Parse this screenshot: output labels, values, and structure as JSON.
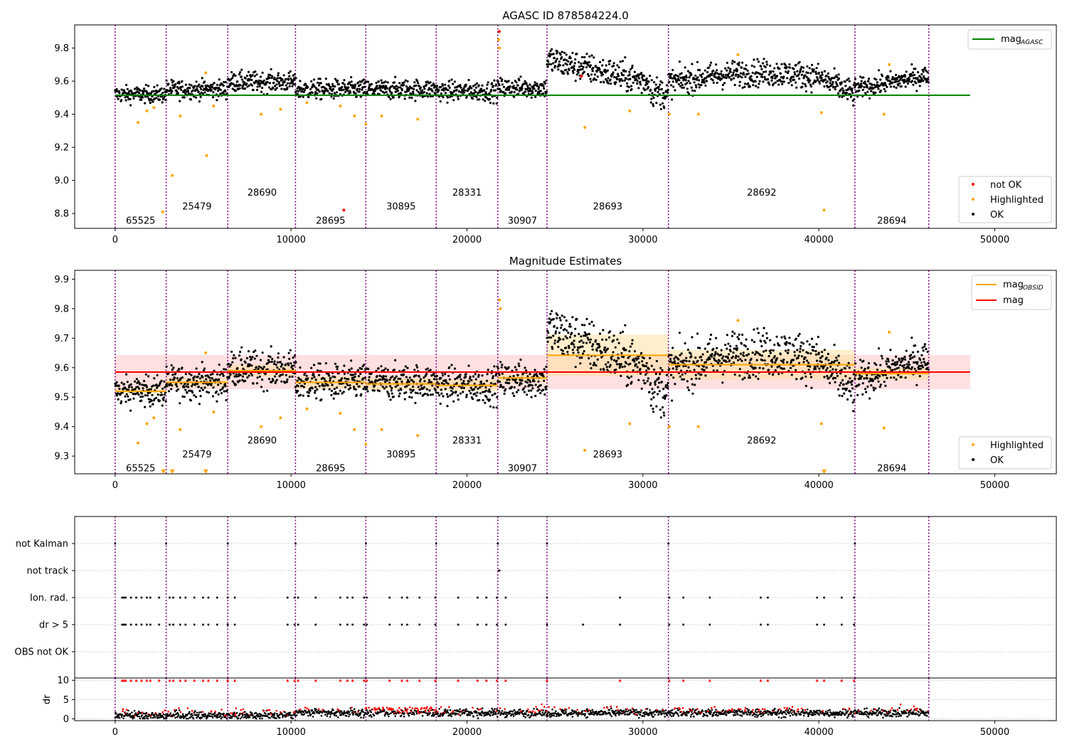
{
  "chart_data": [
    {
      "type": "scatter",
      "title": "AGASC ID 878584224.0",
      "xlim": [
        -2300,
        53500
      ],
      "ylim": [
        8.71,
        9.94
      ],
      "xticks": [
        0,
        10000,
        20000,
        30000,
        40000,
        50000
      ],
      "yticks": [
        8.8,
        9.0,
        9.2,
        9.4,
        9.6,
        9.8
      ],
      "ytick_labels": [
        "8.8",
        "9.0",
        "9.2",
        "9.4",
        "9.6",
        "9.8"
      ],
      "grid": false,
      "obs_boundaries": [
        0,
        2900,
        6400,
        10250,
        14250,
        18250,
        21750,
        24550,
        31450,
        42050,
        46250
      ],
      "obsids": [
        {
          "label": "65525",
          "x": 1450,
          "row": 0
        },
        {
          "label": "25479",
          "x": 4650,
          "row": 1
        },
        {
          "label": "28690",
          "x": 8350,
          "row": 2
        },
        {
          "label": "28695",
          "x": 12250,
          "row": 0
        },
        {
          "label": "30895",
          "x": 16250,
          "row": 1
        },
        {
          "label": "28331",
          "x": 20000,
          "row": 2
        },
        {
          "label": "30907",
          "x": 23150,
          "row": 0
        },
        {
          "label": "28693",
          "x": 28000,
          "row": 1
        },
        {
          "label": "28692",
          "x": 36750,
          "row": 2
        },
        {
          "label": "28694",
          "x": 44150,
          "row": 0
        }
      ],
      "label_y_rows": [
        8.76,
        8.845,
        8.93
      ],
      "mag_agasc": 9.515,
      "mag_agasc_x": [
        0,
        48600
      ],
      "segments": [
        {
          "x0": 0,
          "x1": 2900,
          "mean": 9.52,
          "spread": 0.025
        },
        {
          "x0": 2900,
          "x1": 6400,
          "mean": 9.55,
          "spread": 0.028
        },
        {
          "x0": 6400,
          "x1": 10250,
          "mean": 9.595,
          "spread": 0.03
        },
        {
          "x0": 10250,
          "x1": 14250,
          "mean": 9.55,
          "spread": 0.03
        },
        {
          "x0": 14250,
          "x1": 18250,
          "mean": 9.55,
          "spread": 0.03
        },
        {
          "x0": 18250,
          "x1": 21750,
          "mean": 9.54,
          "spread": 0.03
        },
        {
          "x0": 21750,
          "x1": 24550,
          "mean": 9.56,
          "spread": 0.03
        },
        {
          "x0": 24550,
          "x1": 31450,
          "mean": 9.64,
          "spread": 0.045
        },
        {
          "x0": 31450,
          "x1": 42050,
          "mean": 9.61,
          "spread": 0.04
        },
        {
          "x0": 42050,
          "x1": 46250,
          "mean": 9.585,
          "spread": 0.03
        }
      ],
      "highlighted_outliers": [
        {
          "x": 1300,
          "y": 9.35
        },
        {
          "x": 1800,
          "y": 9.42
        },
        {
          "x": 2200,
          "y": 9.44
        },
        {
          "x": 2700,
          "y": 8.81
        },
        {
          "x": 3250,
          "y": 9.03
        },
        {
          "x": 3700,
          "y": 9.39
        },
        {
          "x": 5200,
          "y": 9.15
        },
        {
          "x": 5600,
          "y": 9.45
        },
        {
          "x": 5150,
          "y": 9.65
        },
        {
          "x": 8300,
          "y": 9.4
        },
        {
          "x": 9400,
          "y": 9.43
        },
        {
          "x": 10900,
          "y": 9.47
        },
        {
          "x": 12800,
          "y": 9.45
        },
        {
          "x": 13600,
          "y": 9.39
        },
        {
          "x": 14250,
          "y": 9.34
        },
        {
          "x": 15150,
          "y": 9.39
        },
        {
          "x": 17200,
          "y": 9.37
        },
        {
          "x": 21800,
          "y": 9.85
        },
        {
          "x": 21850,
          "y": 9.8
        },
        {
          "x": 26700,
          "y": 9.32
        },
        {
          "x": 29250,
          "y": 9.42
        },
        {
          "x": 31500,
          "y": 9.4
        },
        {
          "x": 33150,
          "y": 9.4
        },
        {
          "x": 40300,
          "y": 8.82
        },
        {
          "x": 40150,
          "y": 9.41
        },
        {
          "x": 43700,
          "y": 9.4
        },
        {
          "x": 35400,
          "y": 9.76
        },
        {
          "x": 44000,
          "y": 9.7
        }
      ],
      "notok_points": [
        {
          "x": 13000,
          "y": 8.82
        },
        {
          "x": 21840,
          "y": 9.9
        },
        {
          "x": 26500,
          "y": 9.63
        }
      ],
      "legend_lines": [
        {
          "label_main": "mag",
          "label_sub": "AGASC",
          "color": "#008000"
        }
      ],
      "legend_markers": [
        {
          "label": "not OK",
          "color": "#ff0000"
        },
        {
          "label": "Highlighted",
          "color": "#ffa500"
        },
        {
          "label": "OK",
          "color": "#000000"
        }
      ],
      "legend_placement": "top-right / bottom-right"
    },
    {
      "type": "scatter",
      "title": "Magnitude Estimates",
      "xlim": [
        -2300,
        53500
      ],
      "ylim": [
        9.24,
        9.93
      ],
      "xticks": [
        0,
        10000,
        20000,
        30000,
        40000,
        50000
      ],
      "yticks": [
        9.3,
        9.4,
        9.5,
        9.6,
        9.7,
        9.8,
        9.9
      ],
      "ytick_labels": [
        "9.3",
        "9.4",
        "9.5",
        "9.6",
        "9.7",
        "9.8",
        "9.9"
      ],
      "grid": false,
      "label_y_rows": [
        9.26,
        9.308,
        9.355
      ],
      "mag_overall": 9.585,
      "mag_overall_band": [
        9.527,
        9.643
      ],
      "mag_overall_x": [
        0,
        48600
      ],
      "obsid_means": [
        {
          "x0": 0,
          "x1": 2900,
          "mean": 9.52,
          "err": 0.012
        },
        {
          "x0": 2900,
          "x1": 6400,
          "mean": 9.55,
          "err": 0.015
        },
        {
          "x0": 6400,
          "x1": 10250,
          "mean": 9.59,
          "err": 0.02
        },
        {
          "x0": 10250,
          "x1": 14250,
          "mean": 9.55,
          "err": 0.02
        },
        {
          "x0": 14250,
          "x1": 18250,
          "mean": 9.545,
          "err": 0.02
        },
        {
          "x0": 18250,
          "x1": 21750,
          "mean": 9.54,
          "err": 0.02
        },
        {
          "x0": 21750,
          "x1": 24550,
          "mean": 9.565,
          "err": 0.015
        },
        {
          "x0": 24550,
          "x1": 31450,
          "mean": 9.642,
          "err": 0.07
        },
        {
          "x0": 31450,
          "x1": 42050,
          "mean": 9.61,
          "err": 0.05
        },
        {
          "x0": 42050,
          "x1": 46250,
          "mean": 9.58,
          "err": 0.02
        }
      ],
      "highlighted_outliers": [
        {
          "x": 1300,
          "y": 9.345
        },
        {
          "x": 1800,
          "y": 9.41
        },
        {
          "x": 2200,
          "y": 9.43
        },
        {
          "x": 3700,
          "y": 9.39
        },
        {
          "x": 5600,
          "y": 9.45
        },
        {
          "x": 5150,
          "y": 9.65
        },
        {
          "x": 8300,
          "y": 9.4
        },
        {
          "x": 9400,
          "y": 9.43
        },
        {
          "x": 10900,
          "y": 9.46
        },
        {
          "x": 12800,
          "y": 9.445
        },
        {
          "x": 13600,
          "y": 9.39
        },
        {
          "x": 14250,
          "y": 9.34
        },
        {
          "x": 15150,
          "y": 9.39
        },
        {
          "x": 17200,
          "y": 9.37
        },
        {
          "x": 21850,
          "y": 9.83
        },
        {
          "x": 21900,
          "y": 9.8
        },
        {
          "x": 26700,
          "y": 9.32
        },
        {
          "x": 29250,
          "y": 9.41
        },
        {
          "x": 31500,
          "y": 9.4
        },
        {
          "x": 33150,
          "y": 9.4
        },
        {
          "x": 40150,
          "y": 9.41
        },
        {
          "x": 43700,
          "y": 9.395
        },
        {
          "x": 35400,
          "y": 9.76
        },
        {
          "x": 44000,
          "y": 9.72
        }
      ],
      "clipped_markers": [
        {
          "x": 2750,
          "y": 9.245
        },
        {
          "x": 3250,
          "y": 9.245
        },
        {
          "x": 5150,
          "y": 9.245
        },
        {
          "x": 40300,
          "y": 9.245
        }
      ],
      "legend_lines": [
        {
          "label_main": "mag",
          "label_sub": "OBSID",
          "color": "#ffa500"
        },
        {
          "label_main": "mag",
          "label_sub": "",
          "color": "#ff0000"
        }
      ],
      "legend_markers": [
        {
          "label": "Highlighted",
          "color": "#ffa500"
        },
        {
          "label": "OK",
          "color": "#000000"
        }
      ],
      "legend_placement": "top-right / bottom-right"
    },
    {
      "type": "scatter",
      "title": "",
      "xlim": [
        -2300,
        53500
      ],
      "flag_rows": [
        "not Kalman",
        "not track",
        "Ion. rad.",
        "dr > 5",
        "OBS not OK"
      ],
      "flag_points": {
        "not Kalman": [
          0,
          2900,
          6400,
          10250,
          14250,
          18250,
          21750,
          24550,
          31450,
          42050
        ],
        "not track": [
          21800,
          21850
        ],
        "Ion. rad.": [
          400,
          500,
          600,
          900,
          1200,
          1500,
          1800,
          2000,
          2500,
          3100,
          3300,
          3700,
          4000,
          4500,
          5000,
          5300,
          5800,
          6400,
          6800,
          9800,
          10200,
          10400,
          11400,
          12800,
          13200,
          13500,
          14150,
          14300,
          15600,
          16300,
          16600,
          17300,
          18200,
          19500,
          20600,
          21100,
          21700,
          22200,
          24550,
          28700,
          31500,
          32300,
          33800,
          36700,
          37100,
          39900,
          40300,
          41300,
          42000
        ],
        "dr > 5": [
          400,
          500,
          600,
          900,
          1200,
          1500,
          1800,
          2000,
          2500,
          3100,
          3300,
          3700,
          4000,
          4500,
          5000,
          5300,
          5800,
          6400,
          6800,
          9800,
          10200,
          10400,
          11400,
          12800,
          13200,
          13500,
          14150,
          14300,
          15600,
          16300,
          16600,
          17300,
          18200,
          19500,
          20600,
          21100,
          21700,
          22200,
          24550,
          26600,
          28700,
          31500,
          32300,
          33800,
          36700,
          37100,
          39900,
          40300,
          41300,
          42000
        ],
        "OBS not OK": []
      },
      "dr_panel": {
        "ylabel": "dr",
        "ylim": [
          -0.5,
          10.6
        ],
        "yticks": [
          0,
          5,
          10
        ],
        "ytick_labels": [
          "0",
          "5",
          "10"
        ],
        "xticks": [
          0,
          10000,
          20000,
          30000,
          40000,
          50000
        ],
        "dr_clip": 10,
        "clipped_x": [
          400,
          500,
          600,
          900,
          1200,
          1500,
          1800,
          2000,
          2500,
          3100,
          3300,
          3700,
          4000,
          4500,
          5000,
          5300,
          5800,
          6400,
          6800,
          9800,
          10200,
          10400,
          11400,
          12800,
          13200,
          13500,
          14150,
          14300,
          15600,
          16300,
          16600,
          17300,
          18200,
          19500,
          20600,
          21100,
          21700,
          22200,
          24550,
          28700,
          31500,
          32300,
          33800,
          36700,
          37100,
          39900,
          40300,
          41300,
          42000
        ]
      }
    }
  ],
  "colors": {
    "ok": "#000000",
    "highlighted": "#ffa500",
    "not_ok": "#ff0000",
    "agasc_line": "#008000",
    "obs_boundary": "#800080",
    "band": "#ffd6d6",
    "obsid_band": "#ffe0a0"
  }
}
